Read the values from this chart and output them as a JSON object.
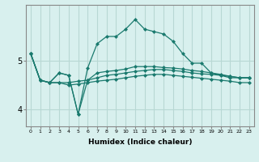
{
  "title": "",
  "xlabel": "Humidex (Indice chaleur)",
  "background_color": "#d8f0ee",
  "grid_color": "#b8d8d4",
  "line_color": "#1a7a6e",
  "x_values": [
    0,
    1,
    2,
    3,
    4,
    5,
    6,
    7,
    8,
    9,
    10,
    11,
    12,
    13,
    14,
    15,
    16,
    17,
    18,
    19,
    20,
    21,
    22,
    23
  ],
  "lines": [
    [
      5.15,
      4.6,
      4.55,
      4.75,
      4.7,
      3.9,
      4.85,
      5.35,
      5.5,
      5.5,
      5.65,
      5.85,
      5.65,
      5.6,
      5.55,
      5.4,
      5.15,
      4.95,
      4.95,
      4.75,
      4.7,
      4.65,
      4.65,
      4.65
    ],
    [
      5.15,
      4.6,
      4.55,
      4.75,
      4.7,
      3.9,
      4.6,
      4.75,
      4.78,
      4.8,
      4.83,
      4.88,
      4.88,
      4.88,
      4.86,
      4.85,
      4.83,
      4.8,
      4.78,
      4.75,
      4.72,
      4.68,
      4.65,
      4.65
    ],
    [
      5.15,
      4.6,
      4.55,
      4.55,
      4.55,
      4.58,
      4.6,
      4.65,
      4.7,
      4.72,
      4.75,
      4.78,
      4.8,
      4.82,
      4.82,
      4.8,
      4.78,
      4.75,
      4.73,
      4.72,
      4.7,
      4.68,
      4.65,
      4.65
    ],
    [
      5.15,
      4.6,
      4.55,
      4.55,
      4.5,
      4.52,
      4.55,
      4.58,
      4.6,
      4.62,
      4.65,
      4.68,
      4.7,
      4.72,
      4.72,
      4.7,
      4.68,
      4.66,
      4.64,
      4.62,
      4.6,
      4.58,
      4.55,
      4.55
    ]
  ],
  "ylim": [
    3.65,
    6.15
  ],
  "yticks": [
    4,
    5
  ],
  "ytick_labels": [
    "4",
    "5"
  ],
  "xlim": [
    -0.5,
    23.5
  ]
}
